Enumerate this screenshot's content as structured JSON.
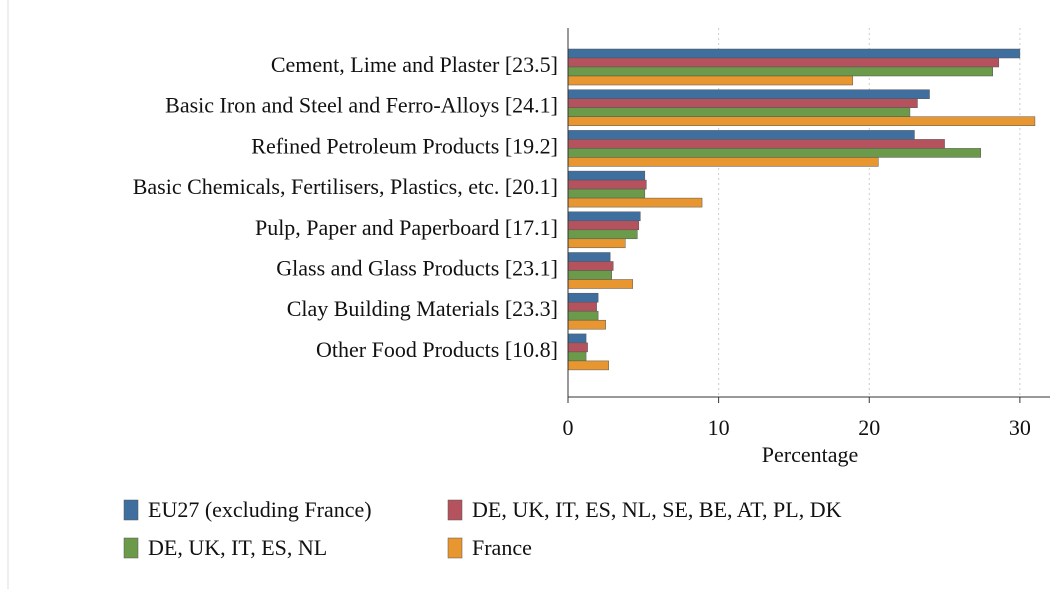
{
  "chart_data": {
    "type": "hbar",
    "xlabel": "Percentage",
    "categories": [
      "Cement, Lime and Plaster [23.5]",
      "Basic Iron and Steel and Ferro-Alloys [24.1]",
      "Refined Petroleum Products [19.2]",
      "Basic Chemicals, Fertilisers, Plastics, etc. [20.1]",
      "Pulp, Paper and Paperboard [17.1]",
      "Glass and Glass Products [23.1]",
      "Clay Building Materials [23.3]",
      "Other Food Products [10.8]"
    ],
    "series": [
      {
        "name": "EU27 (excluding France)",
        "color": "#3f6f9e",
        "values": [
          30.0,
          24.0,
          23.0,
          5.1,
          4.8,
          2.8,
          2.0,
          1.2
        ]
      },
      {
        "name": "DE, UK, IT, ES, NL, SE, BE, AT, PL, DK",
        "color": "#b4535d",
        "values": [
          28.6,
          23.2,
          25.0,
          5.2,
          4.7,
          3.0,
          1.9,
          1.3
        ]
      },
      {
        "name": "DE, UK, IT, ES, NL",
        "color": "#6b9a4b",
        "values": [
          28.2,
          22.7,
          27.4,
          5.1,
          4.6,
          2.9,
          2.0,
          1.2
        ]
      },
      {
        "name": "France",
        "color": "#e8962f",
        "values": [
          18.9,
          31.0,
          20.6,
          8.9,
          3.8,
          4.3,
          2.5,
          2.7
        ]
      }
    ],
    "xlim": [
      0,
      32
    ],
    "xticks": [
      0,
      10,
      20,
      30
    ],
    "grid": true,
    "legend": "bottom"
  }
}
